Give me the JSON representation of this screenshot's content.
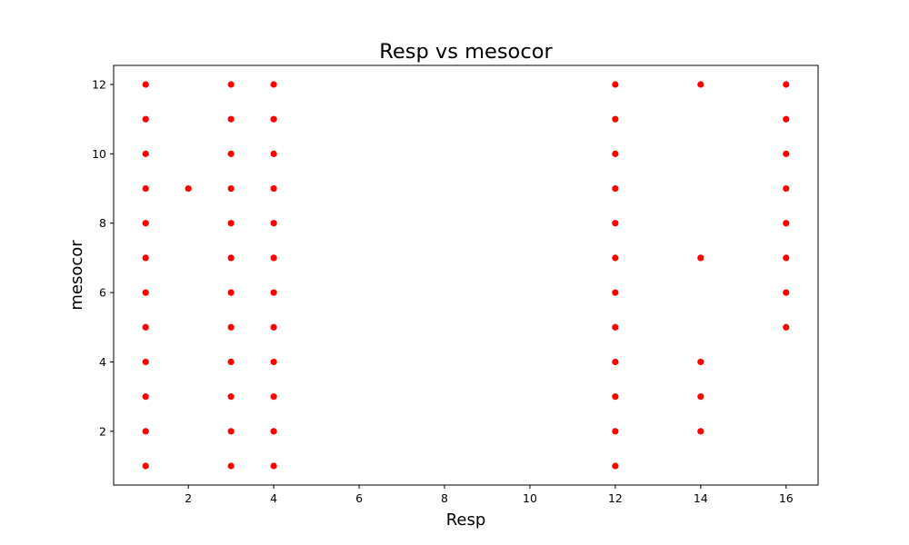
{
  "chart_data": {
    "type": "scatter",
    "title": "Resp vs mesocor",
    "xlabel": "Resp",
    "ylabel": "mesocor",
    "xlim": [
      0.25,
      16.75
    ],
    "ylim": [
      0.45,
      12.55
    ],
    "xticks": [
      2,
      4,
      6,
      8,
      10,
      12,
      14,
      16
    ],
    "yticks": [
      2,
      4,
      6,
      8,
      10,
      12
    ],
    "grid": false,
    "marker_color": "#ff0000",
    "series": [
      {
        "points": [
          [
            1,
            1
          ],
          [
            1,
            2
          ],
          [
            1,
            3
          ],
          [
            1,
            4
          ],
          [
            1,
            5
          ],
          [
            1,
            6
          ],
          [
            1,
            7
          ],
          [
            1,
            8
          ],
          [
            1,
            9
          ],
          [
            1,
            10
          ],
          [
            1,
            11
          ],
          [
            1,
            12
          ],
          [
            2,
            9
          ],
          [
            3,
            1
          ],
          [
            3,
            2
          ],
          [
            3,
            3
          ],
          [
            3,
            4
          ],
          [
            3,
            5
          ],
          [
            3,
            6
          ],
          [
            3,
            7
          ],
          [
            3,
            8
          ],
          [
            3,
            9
          ],
          [
            3,
            10
          ],
          [
            3,
            11
          ],
          [
            3,
            12
          ],
          [
            4,
            1
          ],
          [
            4,
            2
          ],
          [
            4,
            3
          ],
          [
            4,
            4
          ],
          [
            4,
            5
          ],
          [
            4,
            6
          ],
          [
            4,
            7
          ],
          [
            4,
            8
          ],
          [
            4,
            9
          ],
          [
            4,
            10
          ],
          [
            4,
            11
          ],
          [
            4,
            12
          ],
          [
            12,
            1
          ],
          [
            12,
            2
          ],
          [
            12,
            3
          ],
          [
            12,
            4
          ],
          [
            12,
            5
          ],
          [
            12,
            6
          ],
          [
            12,
            7
          ],
          [
            12,
            8
          ],
          [
            12,
            9
          ],
          [
            12,
            10
          ],
          [
            12,
            11
          ],
          [
            12,
            12
          ],
          [
            14,
            2
          ],
          [
            14,
            3
          ],
          [
            14,
            4
          ],
          [
            14,
            7
          ],
          [
            14,
            12
          ],
          [
            16,
            5
          ],
          [
            16,
            6
          ],
          [
            16,
            7
          ],
          [
            16,
            8
          ],
          [
            16,
            9
          ],
          [
            16,
            10
          ],
          [
            16,
            11
          ],
          [
            16,
            12
          ]
        ]
      }
    ]
  }
}
